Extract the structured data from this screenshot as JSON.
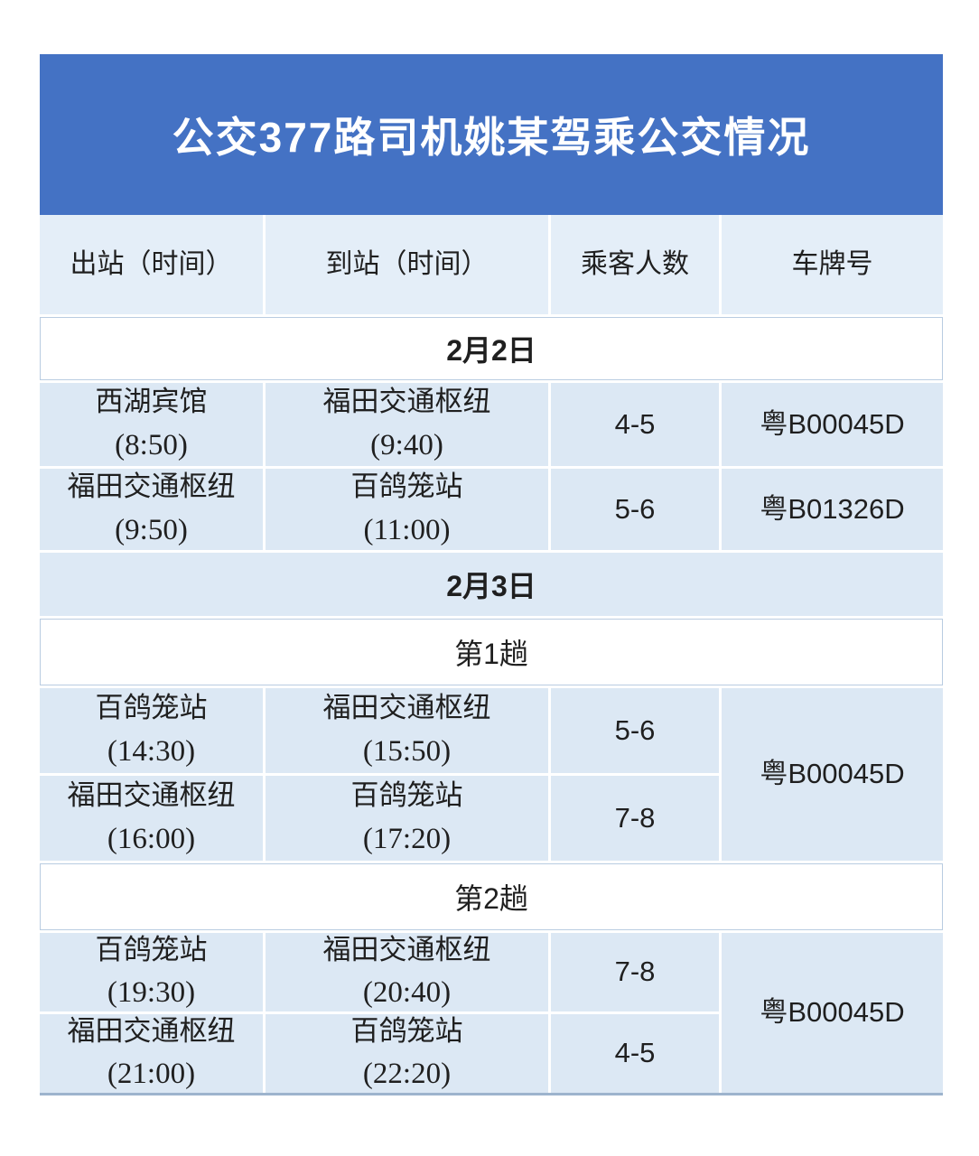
{
  "title": "公交377路司机姚某驾乘公交情况",
  "colors": {
    "title_bg": "#4472c4",
    "title_text": "#ffffff",
    "header_bg": "#e4eef8",
    "cell_bg": "#dce8f4",
    "date_band_bg": "#dde9f5",
    "text": "#1f1f1f",
    "hairline": "#b9cce1",
    "bottom_rule": "#9db4cd"
  },
  "headers": [
    "出站（时间）",
    "到站（时间）",
    "乘客人数",
    "车牌号"
  ],
  "sections": {
    "day1": "2月2日",
    "day2": "2月3日",
    "trip1": "第1趟",
    "trip2": "第2趟"
  },
  "rows": {
    "a1": {
      "from": "西湖宾馆",
      "from_time": "(8:50)",
      "to": "福田交通枢纽",
      "to_time": "(9:40)",
      "passengers": "4-5",
      "plate": "粤B00045D"
    },
    "a2": {
      "from": "福田交通枢纽",
      "from_time": "(9:50)",
      "to": "百鸽笼站",
      "to_time": "(11:00)",
      "passengers": "5-6",
      "plate": "粤B01326D"
    },
    "b1": {
      "from": "百鸽笼站",
      "from_time": "(14:30)",
      "to": "福田交通枢纽",
      "to_time": "(15:50)",
      "passengers": "5-6"
    },
    "b2": {
      "from": "福田交通枢纽",
      "from_time": "(16:00)",
      "to": "百鸽笼站",
      "to_time": "(17:20)",
      "passengers": "7-8"
    },
    "b_plate": "粤B00045D",
    "c1": {
      "from": "百鸽笼站",
      "from_time": "(19:30)",
      "to": "福田交通枢纽",
      "to_time": "(20:40)",
      "passengers": "7-8"
    },
    "c2": {
      "from": "福田交通枢纽",
      "from_time": "(21:00)",
      "to": "百鸽笼站",
      "to_time": "(22:20)",
      "passengers": "4-5"
    },
    "c_plate": "粤B00045D"
  }
}
